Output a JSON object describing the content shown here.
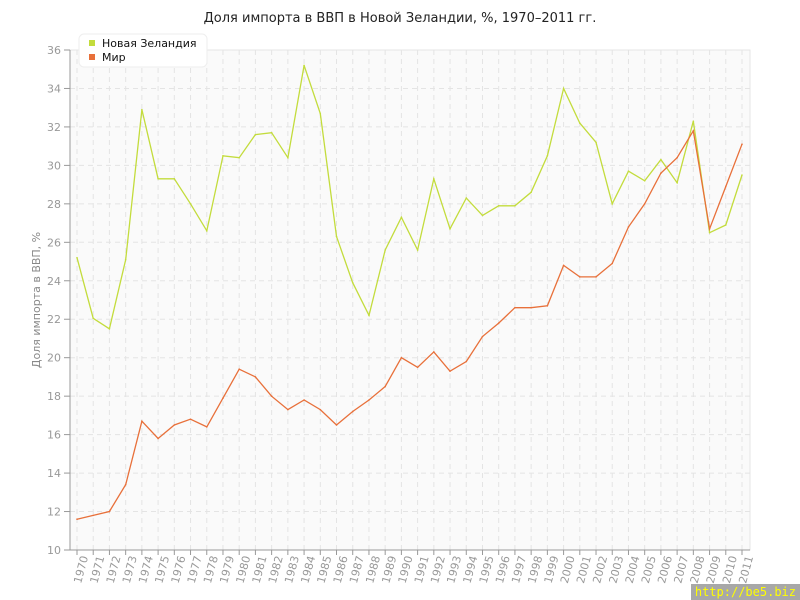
{
  "chart_data": {
    "type": "line",
    "title": "Доля импорта в ВВП в Новой Зеландии, %, 1970–2011 гг.",
    "xlabel": "",
    "ylabel": "Доля импорта в ВВП, %",
    "ylim": [
      10,
      36
    ],
    "yticks": [
      10,
      12,
      14,
      16,
      18,
      20,
      22,
      24,
      26,
      28,
      30,
      32,
      34,
      36
    ],
    "grid": true,
    "legend_placement": "top-left",
    "x": [
      1970,
      1971,
      1972,
      1973,
      1974,
      1975,
      1976,
      1977,
      1978,
      1979,
      1980,
      1981,
      1982,
      1983,
      1984,
      1985,
      1986,
      1987,
      1988,
      1989,
      1990,
      1991,
      1992,
      1993,
      1994,
      1995,
      1996,
      1997,
      1998,
      1999,
      2000,
      2001,
      2002,
      2003,
      2004,
      2005,
      2006,
      2007,
      2008,
      2009,
      2010,
      2011
    ],
    "series": [
      {
        "name": "Новая Зеландия",
        "color": "#c3dc3c",
        "values": [
          25.2,
          22.05,
          21.5,
          25.1,
          32.9,
          29.3,
          29.3,
          28.0,
          26.6,
          30.5,
          30.4,
          31.6,
          31.7,
          30.4,
          35.2,
          32.7,
          26.3,
          23.9,
          22.2,
          25.6,
          27.3,
          25.6,
          29.3,
          26.7,
          28.3,
          27.4,
          27.9,
          27.9,
          28.6,
          30.5,
          34.0,
          32.2,
          31.2,
          28.0,
          29.7,
          29.2,
          30.3,
          29.1,
          32.3,
          26.5,
          26.9,
          29.5
        ]
      },
      {
        "name": "Мир",
        "color": "#e8703a",
        "values": [
          11.6,
          11.8,
          12.0,
          13.4,
          16.7,
          15.8,
          16.5,
          16.8,
          16.4,
          17.9,
          19.4,
          19.0,
          18.0,
          17.3,
          17.8,
          17.3,
          16.5,
          17.2,
          17.8,
          18.5,
          20.0,
          19.5,
          20.3,
          19.3,
          19.8,
          21.1,
          21.8,
          22.6,
          22.6,
          22.7,
          24.8,
          24.2,
          24.2,
          24.9,
          26.8,
          28.0,
          29.6,
          30.4,
          31.8,
          26.7,
          28.9,
          31.1
        ]
      }
    ]
  },
  "watermark": "http://be5.biz"
}
